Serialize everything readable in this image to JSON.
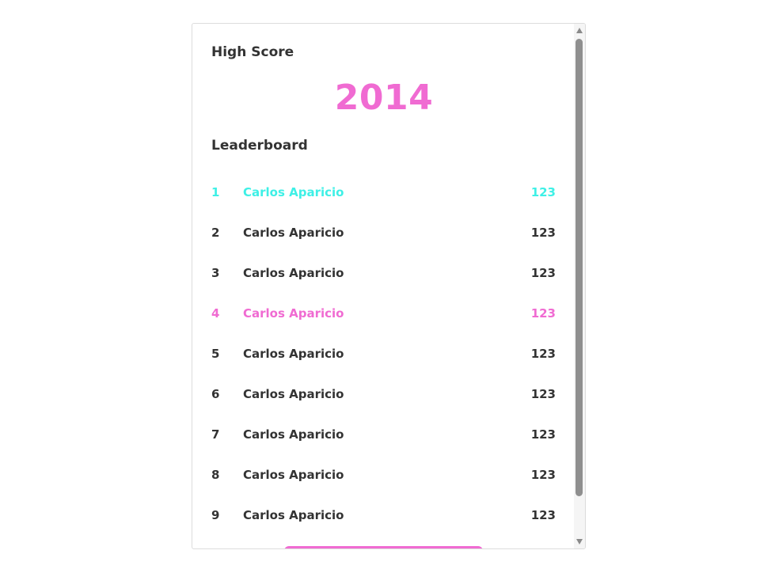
{
  "high_score": {
    "title": "High Score",
    "value": "2014"
  },
  "leaderboard": {
    "title": "Leaderboard",
    "rows": [
      {
        "rank": "1",
        "name": "Carlos Aparicio",
        "score": "123",
        "style": "top"
      },
      {
        "rank": "2",
        "name": "Carlos Aparicio",
        "score": "123",
        "style": "normal"
      },
      {
        "rank": "3",
        "name": "Carlos Aparicio",
        "score": "123",
        "style": "normal"
      },
      {
        "rank": "4",
        "name": "Carlos Aparicio",
        "score": "123",
        "style": "me"
      },
      {
        "rank": "5",
        "name": "Carlos Aparicio",
        "score": "123",
        "style": "normal"
      },
      {
        "rank": "6",
        "name": "Carlos Aparicio",
        "score": "123",
        "style": "normal"
      },
      {
        "rank": "7",
        "name": "Carlos Aparicio",
        "score": "123",
        "style": "normal"
      },
      {
        "rank": "8",
        "name": "Carlos Aparicio",
        "score": "123",
        "style": "normal"
      },
      {
        "rank": "9",
        "name": "Carlos Aparicio",
        "score": "123",
        "style": "normal"
      }
    ]
  },
  "colors": {
    "accent_pink": "#f06bd2",
    "accent_cyan": "#3ef0e6",
    "text": "#333333"
  },
  "icons": {
    "scroll_up": "scroll-up-arrow-icon",
    "scroll_down": "scroll-down-arrow-icon"
  }
}
